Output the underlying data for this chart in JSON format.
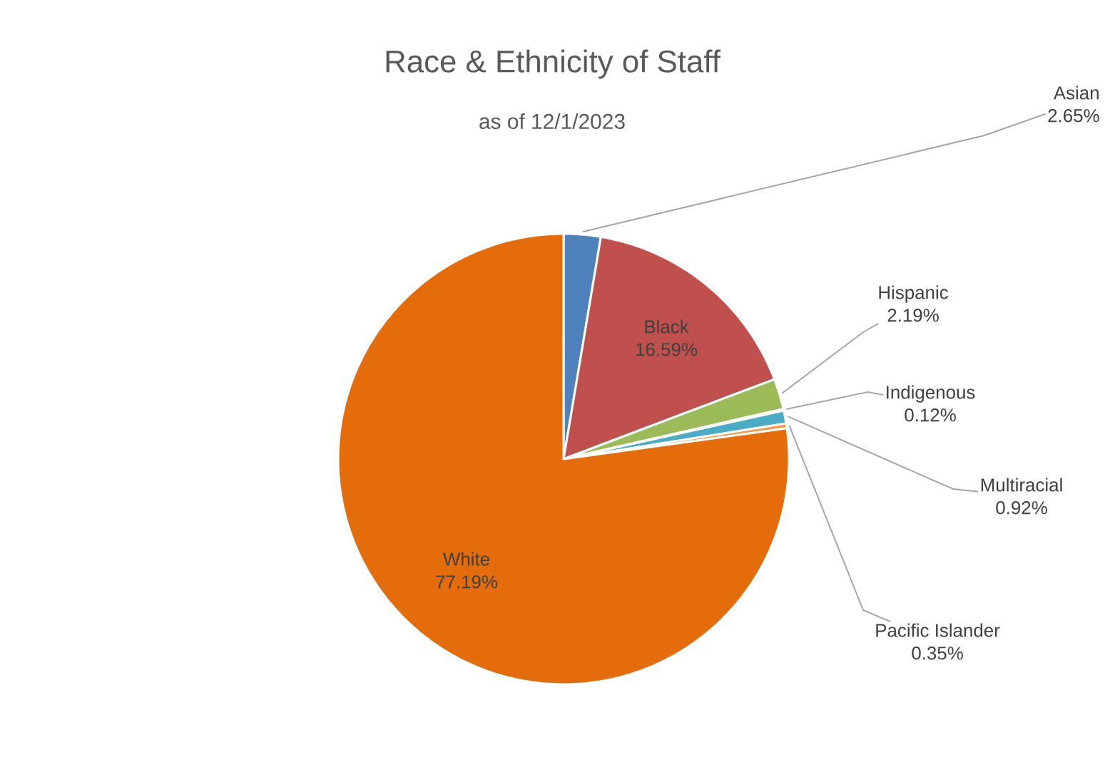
{
  "chart_data": {
    "type": "pie",
    "title": "Race & Ethnicity of Staff",
    "subtitle": "as of 12/1/2023",
    "categories": [
      "Asian",
      "Black",
      "Hispanic",
      "Indigenous",
      "Multiracial",
      "Pacific Islander",
      "White"
    ],
    "values": [
      2.65,
      16.59,
      2.19,
      0.12,
      0.92,
      0.35,
      77.19
    ],
    "colors": [
      "#4f81bd",
      "#c0504d",
      "#9bbb59",
      "#8064a2",
      "#4bacc6",
      "#f79646",
      "#e46c0a"
    ],
    "value_labels": [
      "2.65%",
      "16.59%",
      "2.19%",
      "0.12%",
      "0.92%",
      "0.35%",
      "77.19%"
    ]
  }
}
